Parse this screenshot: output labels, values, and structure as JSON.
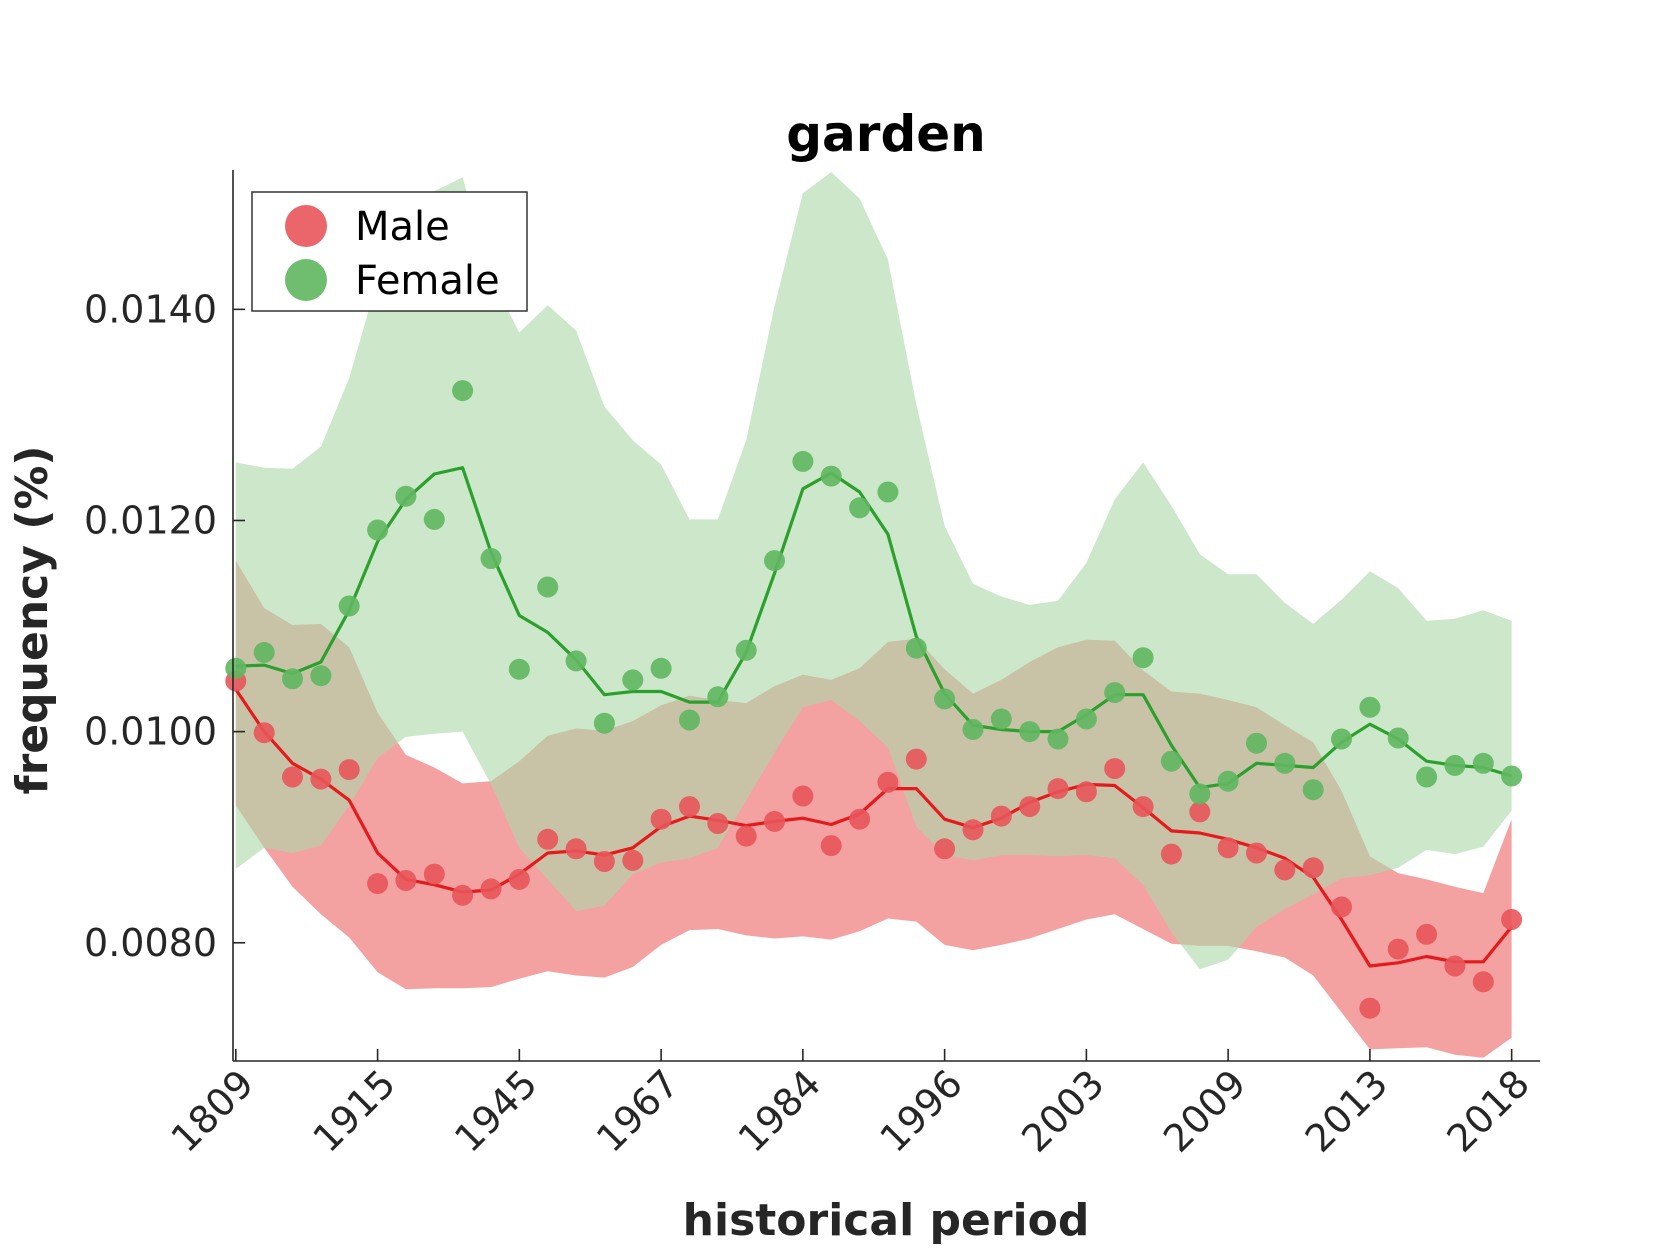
{
  "chart_data": {
    "type": "line",
    "title": "garden",
    "xlabel": "historical period",
    "ylabel": "frequency (%)",
    "x_index": [
      1,
      2,
      3,
      4,
      5,
      6,
      7,
      8,
      9,
      10,
      11,
      12,
      13,
      14,
      15,
      16,
      17,
      18,
      19,
      20,
      21,
      22,
      23,
      24,
      25,
      26,
      27,
      28,
      29,
      30,
      31,
      32,
      33,
      34,
      35,
      36,
      37,
      38,
      39,
      40,
      41,
      42,
      43,
      44,
      45,
      46
    ],
    "x_tick_positions": [
      1,
      6,
      11,
      16,
      21,
      26,
      31,
      36,
      41,
      46
    ],
    "x_tick_labels": [
      "1809",
      "1915",
      "1945",
      "1967",
      "1984",
      "1996",
      "2003",
      "2009",
      "2013",
      "2018"
    ],
    "y_ticks": [
      "0.0080",
      "0.0100",
      "0.0120",
      "0.0140"
    ],
    "y_tick_values": [
      0.008,
      0.01,
      0.012,
      0.014
    ],
    "xlim": [
      0.9,
      47.0
    ],
    "ylim": [
      0.00688,
      0.01532
    ],
    "grid": false,
    "legend_position": "top-left",
    "series": [
      {
        "name": "Male",
        "color": "#e41a1c",
        "marker_color": "#e8555a",
        "band_color": "#f4a1a2",
        "points": [
          0.01048,
          0.00999,
          0.00957,
          0.00955,
          0.00964,
          0.00856,
          0.00859,
          0.00865,
          0.00845,
          0.00851,
          0.0086,
          0.00898,
          0.00889,
          0.00877,
          0.00878,
          0.00917,
          0.00929,
          0.00913,
          0.00901,
          0.00915,
          0.00939,
          0.00892,
          0.00917,
          0.00952,
          0.00974,
          0.00889,
          0.00907,
          0.0092,
          0.00929,
          0.00946,
          0.00943,
          0.00965,
          0.00929,
          0.00884,
          0.00924,
          0.0089,
          0.00885,
          0.00869,
          0.00871,
          0.00834,
          0.00738,
          0.00794,
          0.00808,
          0.00778,
          0.00763,
          0.00822
        ],
        "smooth": [
          0.0104,
          0.01,
          0.0097,
          0.00955,
          0.00935,
          0.00885,
          0.0086,
          0.00855,
          0.00848,
          0.0085,
          0.00865,
          0.00885,
          0.00887,
          0.00883,
          0.0089,
          0.0091,
          0.0092,
          0.00916,
          0.00911,
          0.00915,
          0.00918,
          0.00912,
          0.00922,
          0.00946,
          0.00946,
          0.00917,
          0.00909,
          0.00918,
          0.00933,
          0.00943,
          0.0095,
          0.00949,
          0.00928,
          0.00906,
          0.00904,
          0.00898,
          0.0089,
          0.0088,
          0.00862,
          0.00822,
          0.00778,
          0.00781,
          0.00787,
          0.00782,
          0.00782,
          0.00815
        ],
        "lower": [
          0.0093,
          0.0089,
          0.00853,
          0.00827,
          0.00805,
          0.00772,
          0.00756,
          0.00757,
          0.00757,
          0.00758,
          0.00766,
          0.00773,
          0.00769,
          0.00767,
          0.00777,
          0.00798,
          0.00812,
          0.00813,
          0.00807,
          0.00804,
          0.00806,
          0.00803,
          0.00811,
          0.00823,
          0.0082,
          0.00798,
          0.00793,
          0.00798,
          0.00804,
          0.00813,
          0.00822,
          0.00827,
          0.00813,
          0.00799,
          0.00797,
          0.00797,
          0.00792,
          0.00786,
          0.00769,
          0.00734,
          0.00699,
          0.007,
          0.00701,
          0.00694,
          0.00691,
          0.0071
        ],
        "upper": [
          0.01162,
          0.01117,
          0.01101,
          0.01102,
          0.0108,
          0.01018,
          0.00978,
          0.00966,
          0.00951,
          0.00953,
          0.00972,
          0.00996,
          0.01003,
          0.01001,
          0.0101,
          0.01025,
          0.01034,
          0.0103,
          0.01027,
          0.01043,
          0.01054,
          0.01049,
          0.0106,
          0.01085,
          0.01088,
          0.01059,
          0.01036,
          0.01049,
          0.01066,
          0.0108,
          0.01087,
          0.01086,
          0.01058,
          0.01038,
          0.01036,
          0.0103,
          0.01023,
          0.01006,
          0.0099,
          0.00944,
          0.00882,
          0.00866,
          0.0086,
          0.00853,
          0.00847,
          0.00917
        ]
      },
      {
        "name": "Female",
        "color": "#2ca02c",
        "marker_color": "#5fb760",
        "band_color": "#add9aa",
        "points": [
          0.0106,
          0.01075,
          0.0105,
          0.01053,
          0.01119,
          0.01191,
          0.01223,
          0.01201,
          0.01323,
          0.01164,
          0.01059,
          0.01137,
          0.01067,
          0.01008,
          0.01049,
          0.0106,
          0.01011,
          0.01033,
          0.01077,
          0.01162,
          0.01256,
          0.01242,
          0.01212,
          0.01227,
          0.01079,
          0.01031,
          0.01002,
          0.01012,
          0.01,
          0.00993,
          0.01012,
          0.01037,
          0.0107,
          0.00972,
          0.00941,
          0.00953,
          0.00989,
          0.0097,
          0.00945,
          0.00993,
          0.01023,
          0.00994,
          0.00957,
          0.00968,
          0.0097,
          0.00958
        ],
        "smooth": [
          0.01062,
          0.01063,
          0.01055,
          0.01066,
          0.01115,
          0.0118,
          0.0122,
          0.01244,
          0.0125,
          0.0117,
          0.0111,
          0.01094,
          0.01068,
          0.01035,
          0.01038,
          0.01038,
          0.01028,
          0.01028,
          0.01075,
          0.0115,
          0.0123,
          0.01245,
          0.01227,
          0.01187,
          0.0109,
          0.01036,
          0.01006,
          0.01002,
          0.01,
          0.01,
          0.01016,
          0.01035,
          0.01035,
          0.00987,
          0.00947,
          0.00951,
          0.0097,
          0.00968,
          0.00966,
          0.0099,
          0.01007,
          0.00993,
          0.00972,
          0.00968,
          0.00966,
          0.00958
        ],
        "lower": [
          0.0087,
          0.0089,
          0.00885,
          0.00892,
          0.0093,
          0.00975,
          0.00995,
          0.00998,
          0.01,
          0.0095,
          0.0089,
          0.0086,
          0.0083,
          0.00835,
          0.00865,
          0.00876,
          0.0088,
          0.0089,
          0.00935,
          0.0098,
          0.01023,
          0.0103,
          0.0101,
          0.00985,
          0.0091,
          0.00883,
          0.00878,
          0.00883,
          0.00883,
          0.00882,
          0.00883,
          0.0088,
          0.00855,
          0.0081,
          0.00775,
          0.00784,
          0.00815,
          0.00832,
          0.00846,
          0.00861,
          0.00864,
          0.00871,
          0.00888,
          0.00884,
          0.00891,
          0.00925
        ],
        "upper": [
          0.01255,
          0.0125,
          0.01249,
          0.0127,
          0.01335,
          0.01428,
          0.01478,
          0.01512,
          0.01525,
          0.0143,
          0.01378,
          0.01404,
          0.0138,
          0.01308,
          0.01276,
          0.01253,
          0.01201,
          0.01201,
          0.01276,
          0.01403,
          0.0151,
          0.0153,
          0.01505,
          0.01447,
          0.0131,
          0.01195,
          0.0114,
          0.01128,
          0.0112,
          0.01124,
          0.0116,
          0.0122,
          0.01255,
          0.01214,
          0.01168,
          0.01149,
          0.01149,
          0.01122,
          0.01102,
          0.01125,
          0.01152,
          0.01136,
          0.01105,
          0.01107,
          0.01115,
          0.01105
        ]
      }
    ]
  }
}
